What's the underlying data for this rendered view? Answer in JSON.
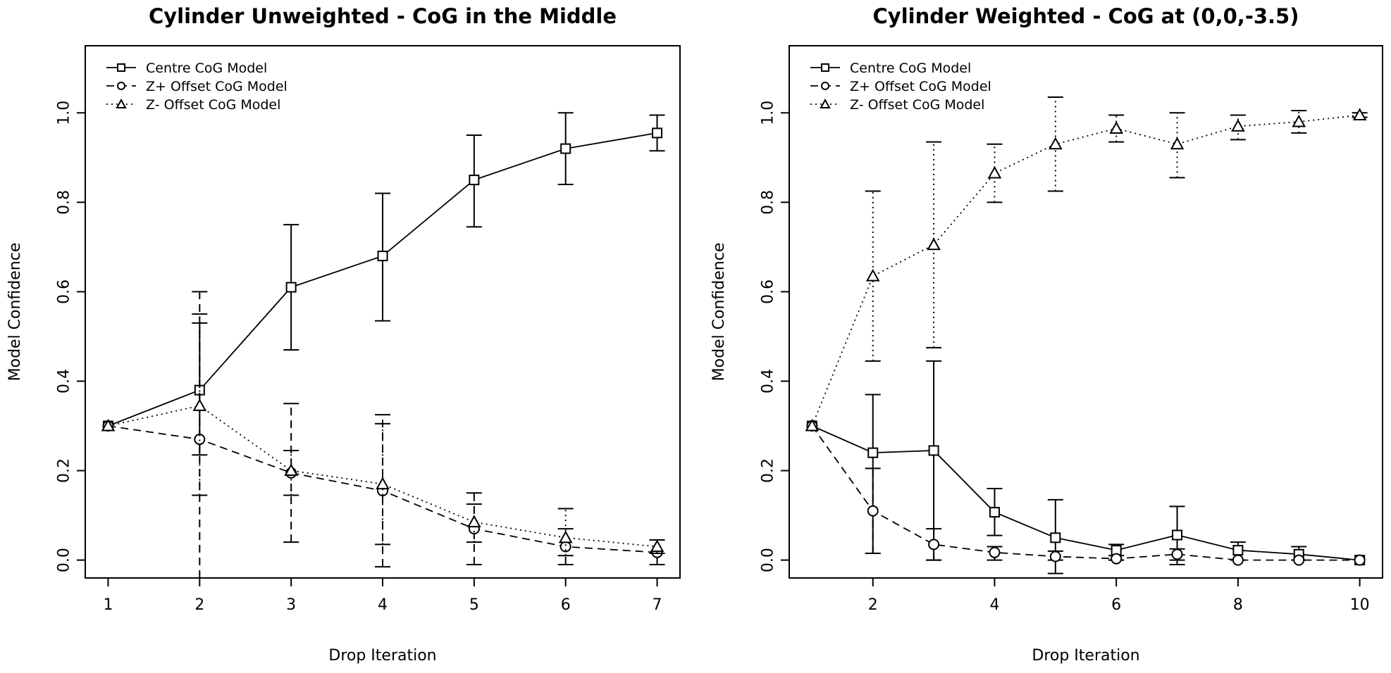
{
  "chart_data": [
    {
      "type": "line",
      "title": "Cylinder Unweighted - CoG in the Middle",
      "xlabel": "Drop Iteration",
      "ylabel": "Model Confidence",
      "xlim": [
        0.75,
        7.25
      ],
      "ylim": [
        -0.04,
        1.15
      ],
      "x_ticks": [
        1,
        2,
        3,
        4,
        5,
        6,
        7
      ],
      "y_ticks": [
        0.0,
        0.2,
        0.4,
        0.6,
        0.8,
        1.0
      ],
      "x_tick_labels": [
        "1",
        "2",
        "3",
        "4",
        "5",
        "6",
        "7"
      ],
      "y_tick_labels": [
        "0.0",
        "0.2",
        "0.4",
        "0.6",
        "0.8",
        "1.0"
      ],
      "grid": false,
      "legend_position": "top-left",
      "series": [
        {
          "name": "Centre CoG Model",
          "marker": "square",
          "line": "solid",
          "x": [
            1,
            2,
            3,
            4,
            5,
            6,
            7
          ],
          "y": [
            0.3,
            0.38,
            0.61,
            0.68,
            0.85,
            0.92,
            0.955
          ],
          "err_low": [
            0.3,
            0.235,
            0.47,
            0.535,
            0.745,
            0.84,
            0.915
          ],
          "err_high": [
            0.3,
            0.53,
            0.75,
            0.82,
            0.95,
            1.0,
            0.995
          ]
        },
        {
          "name": "Z+ Offset CoG Model",
          "marker": "circle",
          "line": "dashed",
          "x": [
            1,
            2,
            3,
            4,
            5,
            6,
            7
          ],
          "y": [
            0.3,
            0.27,
            0.195,
            0.155,
            0.07,
            0.03,
            0.017
          ],
          "err_low": [
            0.3,
            -0.04,
            0.04,
            -0.015,
            -0.01,
            -0.01,
            -0.01
          ],
          "err_high": [
            0.3,
            0.6,
            0.35,
            0.325,
            0.15,
            0.07,
            0.045
          ]
        },
        {
          "name": "Z-  Offset CoG Model",
          "marker": "triangle",
          "line": "dotted",
          "x": [
            1,
            2,
            3,
            4,
            5,
            6,
            7
          ],
          "y": [
            0.3,
            0.345,
            0.2,
            0.17,
            0.085,
            0.05,
            0.03
          ],
          "err_low": [
            0.3,
            0.145,
            0.145,
            0.035,
            0.04,
            0.01,
            0.015
          ],
          "err_high": [
            0.3,
            0.55,
            0.245,
            0.305,
            0.125,
            0.115,
            0.045
          ]
        }
      ]
    },
    {
      "type": "line",
      "title": "Cylinder Weighted - CoG at (0,0,-3.5)",
      "xlabel": "Drop Iteration",
      "ylabel": "Model Confidence",
      "xlim": [
        0.625,
        10.375
      ],
      "ylim": [
        -0.04,
        1.15
      ],
      "x_ticks": [
        2,
        4,
        6,
        8,
        10
      ],
      "y_ticks": [
        0.0,
        0.2,
        0.4,
        0.6,
        0.8,
        1.0
      ],
      "x_tick_labels": [
        "2",
        "4",
        "6",
        "8",
        "10"
      ],
      "y_tick_labels": [
        "0.0",
        "0.2",
        "0.4",
        "0.6",
        "0.8",
        "1.0"
      ],
      "grid": false,
      "legend_position": "top-left",
      "series": [
        {
          "name": "Centre CoG Model",
          "marker": "square",
          "line": "solid",
          "x": [
            1,
            2,
            3,
            4,
            5,
            6,
            7,
            8,
            9,
            10
          ],
          "y": [
            0.3,
            0.24,
            0.245,
            0.107,
            0.05,
            0.022,
            0.056,
            0.022,
            0.013,
            0.0
          ],
          "err_low": [
            0.3,
            0.015,
            0.0,
            0.055,
            -0.03,
            0.0,
            -0.01,
            0.0,
            0.0,
            0.0
          ],
          "err_high": [
            0.3,
            0.37,
            0.445,
            0.16,
            0.135,
            0.035,
            0.12,
            0.04,
            0.03,
            0.0
          ]
        },
        {
          "name": "Z+ Offset CoG Model",
          "marker": "circle",
          "line": "dashed",
          "x": [
            1,
            2,
            3,
            4,
            5,
            6,
            7,
            8,
            9,
            10
          ],
          "y": [
            0.3,
            0.11,
            0.035,
            0.017,
            0.008,
            0.003,
            0.013,
            0.0,
            0.0,
            0.0
          ],
          "err_low": [
            0.3,
            0.015,
            0.0,
            0.0,
            0.0,
            0.0,
            0.0,
            0.0,
            0.0,
            0.0
          ],
          "err_high": [
            0.3,
            0.205,
            0.07,
            0.03,
            0.02,
            0.01,
            0.025,
            0.0,
            0.0,
            0.0
          ]
        },
        {
          "name": "Z-  Offset CoG Model",
          "marker": "triangle",
          "line": "dotted",
          "x": [
            1,
            2,
            3,
            4,
            5,
            6,
            7,
            8,
            9,
            10
          ],
          "y": [
            0.3,
            0.635,
            0.705,
            0.865,
            0.93,
            0.965,
            0.93,
            0.97,
            0.98,
            0.995
          ],
          "err_low": [
            0.3,
            0.445,
            0.475,
            0.8,
            0.825,
            0.935,
            0.855,
            0.94,
            0.955,
            0.99
          ],
          "err_high": [
            0.3,
            0.825,
            0.935,
            0.93,
            1.035,
            0.995,
            1.0,
            0.995,
            1.005,
            1.0
          ]
        }
      ]
    }
  ]
}
